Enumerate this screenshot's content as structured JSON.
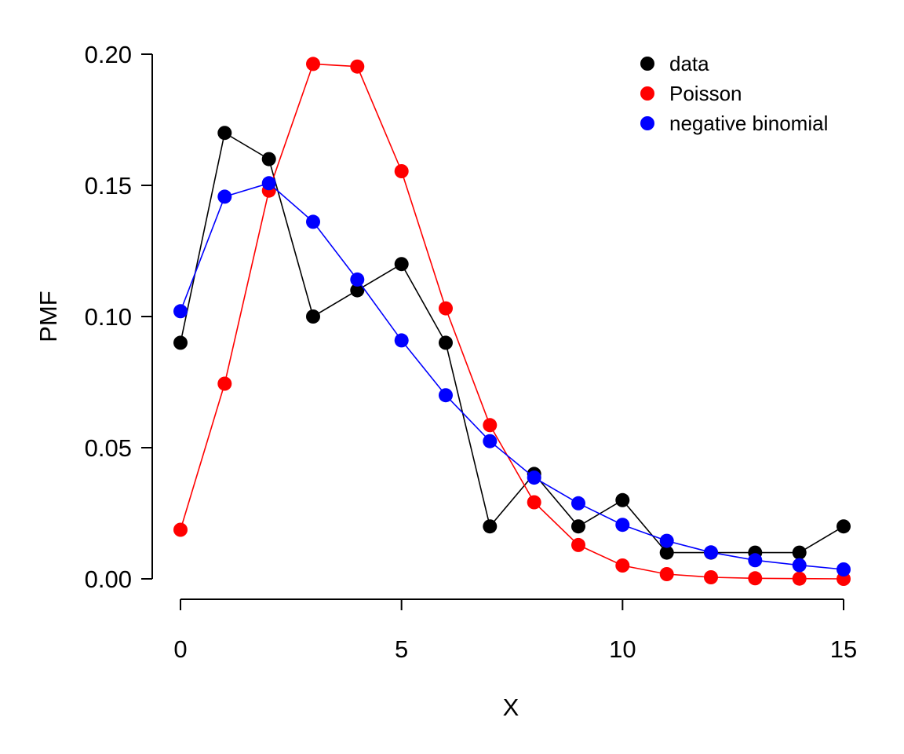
{
  "chart_data": {
    "type": "line",
    "title": "",
    "xlabel": "X",
    "ylabel": "PMF",
    "xlim": [
      0,
      15
    ],
    "ylim": [
      0,
      0.2
    ],
    "x_ticks": [
      "0",
      "5",
      "10",
      "15"
    ],
    "y_ticks": [
      "0.00",
      "0.05",
      "0.10",
      "0.15",
      "0.20"
    ],
    "grid": false,
    "legend_position": "top-right",
    "x": [
      0,
      1,
      2,
      3,
      4,
      5,
      6,
      7,
      8,
      9,
      10,
      11,
      12,
      13,
      14,
      15
    ],
    "series": [
      {
        "name": "data",
        "color": "#000000",
        "values": [
          0.09,
          0.17,
          0.16,
          0.1,
          0.11,
          0.12,
          0.09,
          0.02,
          0.04,
          0.02,
          0.03,
          0.01,
          0.01,
          0.01,
          0.01,
          0.02
        ]
      },
      {
        "name": "Poisson",
        "color": "#ff0000",
        "values": [
          0.0187,
          0.0744,
          0.148,
          0.1963,
          0.1953,
          0.1554,
          0.1031,
          0.0586,
          0.0292,
          0.0129,
          0.0051,
          0.0018,
          0.0006,
          0.0002,
          0.0001,
          0.0
        ]
      },
      {
        "name": "negative binomial",
        "color": "#0000ff",
        "values": [
          0.102,
          0.1457,
          0.1508,
          0.1361,
          0.1141,
          0.0909,
          0.07,
          0.0525,
          0.0386,
          0.0288,
          0.0206,
          0.0145,
          0.0101,
          0.0071,
          0.0052,
          0.0036
        ]
      }
    ]
  }
}
